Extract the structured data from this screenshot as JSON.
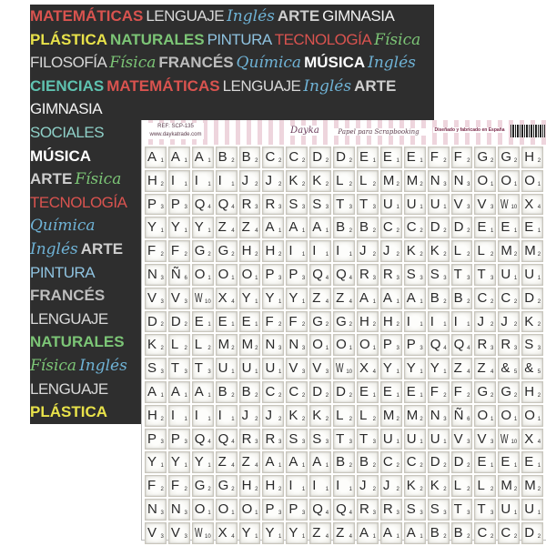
{
  "background_paper": {
    "words": [
      {
        "text": "MATEMÁTICAS",
        "color": "#d9534f",
        "style": "bold"
      },
      {
        "text": "LENGUAJE",
        "color": "#d8d8d8",
        "style": "narrow"
      },
      {
        "text": "Inglés",
        "color": "#6fb3d6",
        "style": "hand"
      },
      {
        "text": "ARTE",
        "color": "#cfcfcf",
        "style": "bold"
      },
      {
        "text": "GIMNASIA",
        "color": "#f2f2f2",
        "style": "narrow"
      },
      {
        "text": "PLÁSTICA",
        "color": "#e8e24a",
        "style": "bold"
      },
      {
        "text": "NATURALES",
        "color": "#7cc576",
        "style": "bold"
      },
      {
        "text": "PINTURA",
        "color": "#8fc3e0",
        "style": "narrow"
      },
      {
        "text": "TECNOLOGÍA",
        "color": "#d9534f",
        "style": "narrow"
      },
      {
        "text": "SOCIALES",
        "color": "#8fd0c8",
        "style": "narrow"
      },
      {
        "text": "FILOSOFÍA",
        "color": "#d8d8d8",
        "style": "narrow"
      },
      {
        "text": "Física",
        "color": "#7cc576",
        "style": "hand"
      },
      {
        "text": "FRANCÉS",
        "color": "#bdbdbd",
        "style": "bold"
      },
      {
        "text": "Química",
        "color": "#6fb3d6",
        "style": "hand"
      },
      {
        "text": "MÚSICA",
        "color": "#ffffff",
        "style": "bold"
      },
      {
        "text": "CIENCIAS",
        "color": "#5fc2b0",
        "style": "bold"
      }
    ]
  },
  "sheet": {
    "ref": "REF: SCP-135",
    "website": "www.daykatrade.com",
    "logo": "Dayka",
    "tagline": "Papel para Scrapbooking",
    "made_in": "Diseñado y fabricado en España",
    "tiles": [
      [
        "A1",
        "A1",
        "A1",
        "B2",
        "B2",
        "C2",
        "C2",
        "D2",
        "D2",
        "E1",
        "E1",
        "E1",
        "F2",
        "F2",
        "G2",
        "G2",
        "H2"
      ],
      [
        "H2",
        "I1",
        "I1",
        "I1",
        "J2",
        "J2",
        "K2",
        "K2",
        "L2",
        "L2",
        "M2",
        "M2",
        "N3",
        "N3",
        "O1",
        "O1",
        "O1"
      ],
      [
        "P3",
        "P3",
        "Q4",
        "Q4",
        "R3",
        "R3",
        "S3",
        "S3",
        "T3",
        "T3",
        "U1",
        "U1",
        "U1",
        "V3",
        "V3",
        "W10",
        "X4"
      ],
      [
        "Y1",
        "Y1",
        "Y1",
        "Z4",
        "Z4",
        "A1",
        "A1",
        "A1",
        "B2",
        "B2",
        "C2",
        "C2",
        "D2",
        "D2",
        "E1",
        "E1",
        "E1"
      ],
      [
        "F2",
        "F2",
        "G2",
        "G2",
        "H2",
        "H2",
        "I1",
        "I1",
        "I1",
        "J2",
        "J2",
        "K2",
        "K2",
        "L2",
        "L2",
        "M2",
        "M2"
      ],
      [
        "N3",
        "Ñ6",
        "O1",
        "O1",
        "O1",
        "P3",
        "P3",
        "Q4",
        "Q4",
        "R3",
        "R3",
        "S3",
        "S3",
        "T3",
        "T3",
        "U1",
        "U1"
      ],
      [
        "V3",
        "V3",
        "W10",
        "X4",
        "Y1",
        "Y1",
        "Y1",
        "Z4",
        "Z4",
        "A1",
        "A1",
        "A1",
        "B2",
        "B2",
        "C2",
        "C2",
        "D2"
      ],
      [
        "D2",
        "D2",
        "E1",
        "E1",
        "E1",
        "F2",
        "F2",
        "G2",
        "G2",
        "H2",
        "H2",
        "I1",
        "I1",
        "I1",
        "J2",
        "J2",
        "K2"
      ],
      [
        "K2",
        "L2",
        "L2",
        "M2",
        "M2",
        "N3",
        "N3",
        "O1",
        "O1",
        "O1",
        "P3",
        "P3",
        "Q4",
        "Q4",
        "R3",
        "R3",
        "S3"
      ],
      [
        "S3",
        "T3",
        "T3",
        "U1",
        "U1",
        "U1",
        "V3",
        "V3",
        "W10",
        "X4",
        "Y1",
        "Y1",
        "Y1",
        "Z4",
        "Z4",
        "&5",
        "&5"
      ],
      [
        "A1",
        "A1",
        "A1",
        "B2",
        "B2",
        "C2",
        "C2",
        "D2",
        "D2",
        "E1",
        "E1",
        "E1",
        "F2",
        "F2",
        "G2",
        "G2",
        "H2"
      ],
      [
        "H2",
        "I1",
        "I1",
        "I1",
        "J2",
        "J2",
        "K2",
        "K2",
        "L2",
        "L2",
        "M2",
        "M2",
        "N3",
        "Ñ6",
        "O1",
        "O1",
        "O1"
      ],
      [
        "P3",
        "P3",
        "Q4",
        "Q4",
        "R3",
        "R3",
        "S3",
        "S3",
        "T3",
        "T3",
        "U1",
        "U1",
        "U1",
        "V3",
        "V3",
        "W10",
        "X4"
      ],
      [
        "Y1",
        "Y1",
        "Y1",
        "Z4",
        "Z4",
        "A1",
        "A1",
        "A1",
        "B2",
        "B2",
        "C2",
        "C2",
        "D2",
        "D2",
        "E1",
        "E1",
        "E1"
      ],
      [
        "F2",
        "F2",
        "G2",
        "G2",
        "H2",
        "H2",
        "I1",
        "I1",
        "I1",
        "J2",
        "J2",
        "K2",
        "K2",
        "L2",
        "L2",
        "M2",
        "M2"
      ],
      [
        "N3",
        "N3",
        "O1",
        "O1",
        "O1",
        "P3",
        "P3",
        "Q4",
        "Q4",
        "R3",
        "R3",
        "S3",
        "S3",
        "T3",
        "T3",
        "U1",
        "U1"
      ],
      [
        "V3",
        "V3",
        "W10",
        "X4",
        "Y1",
        "Y1",
        "Y1",
        "Z4",
        "Z4",
        "A1",
        "A1",
        "A1",
        "B2",
        "B2",
        "C2",
        "C2",
        "D2"
      ]
    ]
  }
}
